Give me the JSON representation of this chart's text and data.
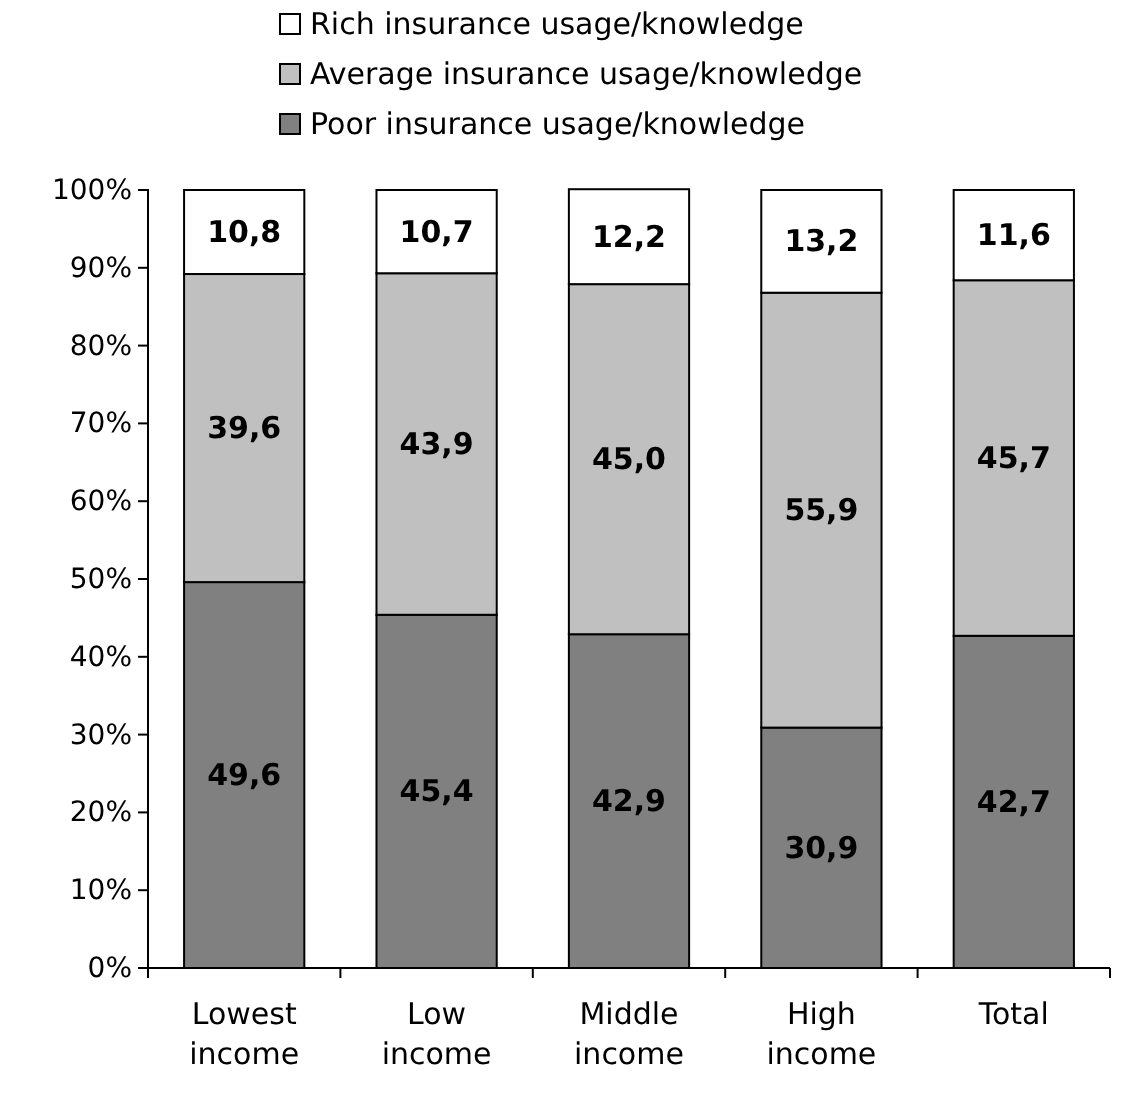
{
  "chart_data": {
    "type": "bar",
    "stacked": true,
    "categories": [
      "Lowest income",
      "Low income",
      "Middle income",
      "High income",
      "Total"
    ],
    "series": [
      {
        "name": "Poor insurance usage/knowledge",
        "color": "#808080",
        "values": [
          49.6,
          45.4,
          42.9,
          30.9,
          42.7
        ],
        "value_labels": [
          "49,6",
          "45,4",
          "42,9",
          "30,9",
          "42,7"
        ]
      },
      {
        "name": "Average insurance usage/knowledge",
        "color": "#c0c0c0",
        "values": [
          39.6,
          43.9,
          45.0,
          55.9,
          45.7
        ],
        "value_labels": [
          "39,6",
          "43,9",
          "45,0",
          "55,9",
          "45,7"
        ]
      },
      {
        "name": "Rich insurance usage/knowledge",
        "color": "#ffffff",
        "values": [
          10.8,
          10.7,
          12.2,
          13.2,
          11.6
        ],
        "value_labels": [
          "10,8",
          "10,7",
          "12,2",
          "13,2",
          "11,6"
        ]
      }
    ],
    "ylim": [
      0,
      100
    ],
    "yticks": [
      {
        "value": 0,
        "label": "0%"
      },
      {
        "value": 10,
        "label": "10%"
      },
      {
        "value": 20,
        "label": "20%"
      },
      {
        "value": 30,
        "label": "30%"
      },
      {
        "value": 40,
        "label": "40%"
      },
      {
        "value": 50,
        "label": "50%"
      },
      {
        "value": 60,
        "label": "60%"
      },
      {
        "value": 70,
        "label": "70%"
      },
      {
        "value": 80,
        "label": "80%"
      },
      {
        "value": 90,
        "label": "90%"
      },
      {
        "value": 100,
        "label": "100%"
      }
    ],
    "legend": "top"
  }
}
